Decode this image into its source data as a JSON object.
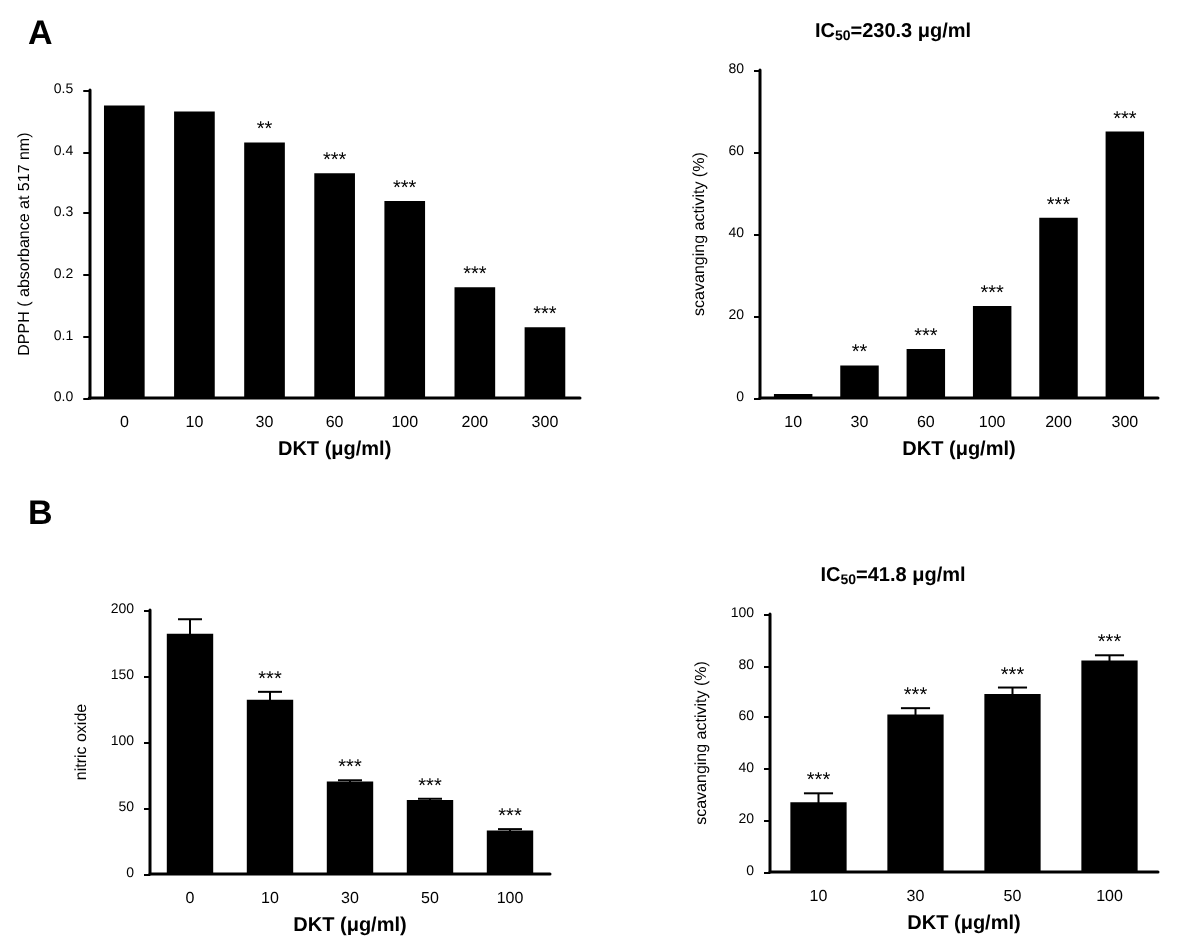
{
  "chart_data": [
    {
      "type": "bar",
      "xlabel": "DKT (μg/ml)",
      "ylabel": "DPPH ( absorbance at 517 nm)",
      "categories": [
        "0",
        "10",
        "30",
        "60",
        "100",
        "200",
        "300"
      ],
      "values": [
        0.475,
        0.465,
        0.415,
        0.365,
        0.32,
        0.18,
        0.115
      ],
      "color": "#000000",
      "ylim": [
        0,
        0.5
      ],
      "yticks": [
        {
          "value": 0,
          "label": "0.0"
        },
        0.1,
        0.2,
        0.3,
        0.4,
        0.5
      ],
      "grid": false,
      "annotations": [
        "A",
        {
          "text": "**",
          "x": "30",
          "y": 0.415
        },
        {
          "text": "***",
          "x": "60",
          "y": 0.365
        },
        {
          "text": "***",
          "x": "100",
          "y": 0.32
        },
        {
          "text": "***",
          "x": "200",
          "y": 0.18
        },
        {
          "text": "***",
          "x": "300",
          "y": 0.115
        }
      ]
    },
    {
      "type": "bar",
      "title": "IC$_{50}$=230.3 μg/ml",
      "xlabel": "DKT (μg/ml)",
      "ylabel": "scavanging activity (%)",
      "categories": [
        "10",
        "30",
        "60",
        "100",
        "200",
        "300"
      ],
      "values": [
        1,
        8,
        12,
        22.5,
        44,
        65
      ],
      "color": "#000000",
      "ylim": [
        0,
        80
      ],
      "yticks": [
        0,
        20,
        40,
        60,
        80
      ],
      "grid": false,
      "annotations": [
        {
          "text": "**",
          "x": "30",
          "y": 8
        },
        {
          "text": "***",
          "x": "60",
          "y": 12
        },
        {
          "text": "***",
          "x": "100",
          "y": 22.5
        },
        {
          "text": "***",
          "x": "200",
          "y": 44
        },
        {
          "text": "***",
          "x": "300",
          "y": 65
        }
      ]
    },
    {
      "type": "bar",
      "xlabel": "DKT (μg/ml)",
      "ylabel": "nitric oxide",
      "categories": [
        "0",
        "10",
        "30",
        "50",
        "100"
      ],
      "values": [
        182,
        132,
        70,
        56,
        33
      ],
      "errors": [
        11,
        6,
        1,
        1,
        1
      ],
      "color": "#000000",
      "ylim": [
        0,
        200
      ],
      "yticks": [
        0,
        50,
        100,
        150,
        200
      ],
      "grid": false,
      "annotations": [
        "B",
        {
          "text": "***",
          "x": "10",
          "y": 138
        },
        {
          "text": "***",
          "x": "30",
          "y": 71
        },
        {
          "text": "***",
          "x": "50",
          "y": 57
        },
        {
          "text": "***",
          "x": "100",
          "y": 34
        }
      ]
    },
    {
      "type": "bar",
      "title": "IC$_{50}$=41.8 μg/ml",
      "xlabel": "DKT (μg/ml)",
      "ylabel": "scavanging activity (%)",
      "categories": [
        "10",
        "30",
        "50",
        "100"
      ],
      "values": [
        27,
        61,
        69,
        82
      ],
      "errors": [
        3.5,
        2.5,
        2.5,
        2
      ],
      "color": "#000000",
      "ylim": [
        0,
        100
      ],
      "yticks": [
        0,
        20,
        40,
        60,
        80,
        100
      ],
      "grid": false,
      "annotations": [
        {
          "text": "***",
          "x": "10",
          "y": 30.5
        },
        {
          "text": "***",
          "x": "30",
          "y": 63.5
        },
        {
          "text": "***",
          "x": "50",
          "y": 71.5
        },
        {
          "text": "***",
          "x": "100",
          "y": 84
        }
      ]
    }
  ]
}
